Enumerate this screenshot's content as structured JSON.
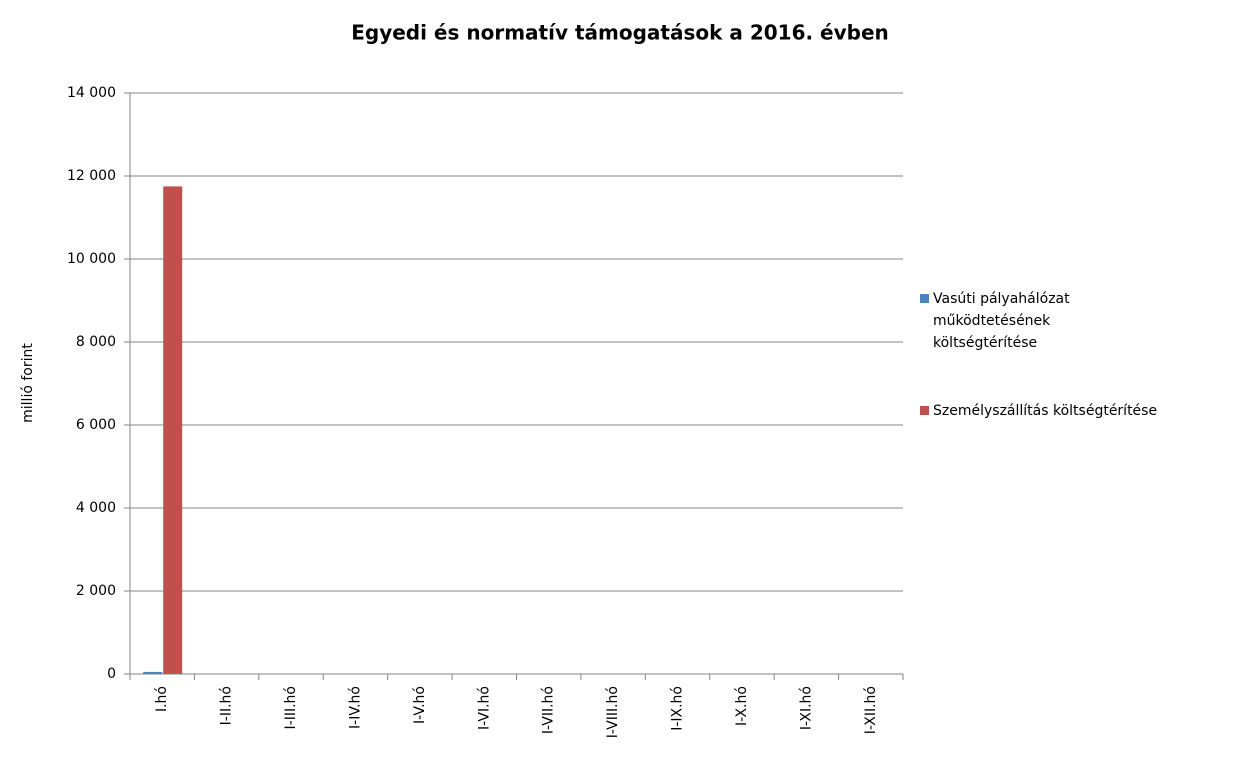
{
  "chart_data": {
    "type": "bar",
    "title": "Egyedi és normatív támogatások  a 2016. évben",
    "y_label": "millió forint",
    "categories": [
      "I.hó",
      "I-II.hó",
      "I-III.hó",
      "I-IV.hó",
      "I-V.hó",
      "I-VI.hó",
      "I-VII.hó",
      "I-VIII.hó",
      "I-IX.hó",
      "I-X.hó",
      "I-XI.hó",
      "I-XII.hó"
    ],
    "series": [
      {
        "name": "Vasúti pályahálózat működtetésének költségtérítése",
        "color": "#4f81bd",
        "values": [
          50,
          null,
          null,
          null,
          null,
          null,
          null,
          null,
          null,
          null,
          null,
          null
        ]
      },
      {
        "name": "Személyszállítás költségtérítése",
        "color": "#c0504d",
        "values": [
          11750,
          null,
          null,
          null,
          null,
          null,
          null,
          null,
          null,
          null,
          null,
          null
        ]
      }
    ],
    "ylim": [
      0,
      14000
    ],
    "yticks": [
      0,
      {
        "value": 2000,
        "label": "2 000"
      },
      {
        "value": 4000,
        "label": "4 000"
      },
      {
        "value": 6000,
        "label": "6 000"
      },
      {
        "value": 8000,
        "label": "8 000"
      },
      {
        "value": 10000,
        "label": "10 000"
      },
      {
        "value": 12000,
        "label": "12 000"
      },
      {
        "value": 14000,
        "label": "14 000"
      }
    ],
    "grid": true,
    "legend": "right"
  }
}
